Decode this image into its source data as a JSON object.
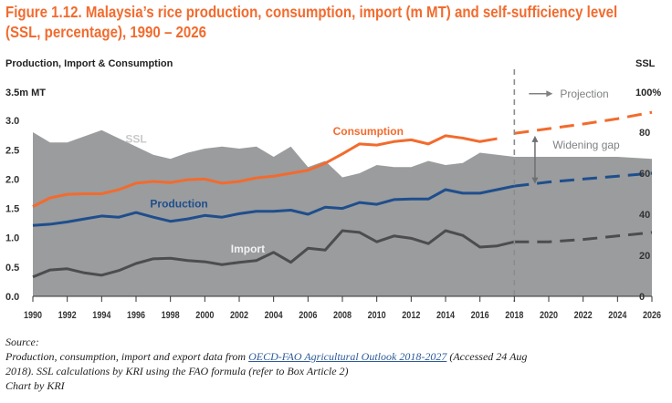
{
  "title": {
    "line1": "Figure 1.12. Malaysia’s rice production, consumption, import (m MT) and self-sufficiency level",
    "line2": "(SSL, percentage), 1990 – 2026"
  },
  "colors": {
    "consumption": "#f26b2e",
    "production": "#1f4e8c",
    "import": "#4d4d4f",
    "ssl_area": "#9a9c9e",
    "title": "#f26b2e",
    "annotation": "#7f8183"
  },
  "chart_data": {
    "type": "line",
    "title": "Malaysia’s rice production, consumption, import (m MT) and self-sufficiency level (SSL, percentage), 1990 – 2026",
    "left_axis_title": "Production, Import & Consumption",
    "left_axis_unit_label": "3.5m MT",
    "right_axis_title": "SSL",
    "right_axis_unit_label": "100%",
    "xlabel": "",
    "ylim_left": [
      0,
      3.5
    ],
    "ylim_right": [
      0,
      100
    ],
    "xlim": [
      1990,
      2026
    ],
    "left_ticks": [
      "0.0",
      "0.5",
      "1.0",
      "1.5",
      "2.0",
      "2.5",
      "3.0"
    ],
    "left_tick_values": [
      0,
      0.5,
      1.0,
      1.5,
      2.0,
      2.5,
      3.0
    ],
    "right_ticks": [
      "0",
      "20",
      "40",
      "60",
      "80"
    ],
    "right_tick_values": [
      0,
      20,
      40,
      60,
      80
    ],
    "x_ticks": [
      "1990",
      "1992",
      "1994",
      "1996",
      "1998",
      "2000",
      "2002",
      "2004",
      "2006",
      "2008",
      "2010",
      "2012",
      "2014",
      "2016",
      "2018",
      "2020",
      "2022",
      "2024",
      "2026"
    ],
    "projection_start": 2018,
    "grid": false,
    "series": [
      {
        "name": "Consumption",
        "axis": "left",
        "kind": "line",
        "x": [
          1990,
          1991,
          1992,
          1993,
          1994,
          1995,
          1996,
          1997,
          1998,
          1999,
          2000,
          2001,
          2002,
          2003,
          2004,
          2005,
          2006,
          2007,
          2008,
          2009,
          2010,
          2011,
          2012,
          2013,
          2014,
          2015,
          2016,
          2017
        ],
        "values": [
          1.53,
          1.68,
          1.74,
          1.75,
          1.75,
          1.82,
          1.93,
          1.96,
          1.94,
          1.99,
          2.0,
          1.93,
          1.96,
          2.02,
          2.05,
          2.1,
          2.15,
          2.27,
          2.43,
          2.6,
          2.58,
          2.64,
          2.67,
          2.6,
          2.74,
          2.7,
          2.64,
          2.69
        ],
        "projection_x": [
          2018,
          2020,
          2022,
          2024,
          2026
        ],
        "projection_values": [
          2.78,
          2.86,
          2.94,
          3.03,
          3.14
        ]
      },
      {
        "name": "Production",
        "axis": "left",
        "kind": "line",
        "x": [
          1990,
          1991,
          1992,
          1993,
          1994,
          1995,
          1996,
          1997,
          1998,
          1999,
          2000,
          2001,
          2002,
          2003,
          2004,
          2005,
          2006,
          2007,
          2008,
          2009,
          2010,
          2011,
          2012,
          2013,
          2014,
          2015,
          2016,
          2017,
          2018
        ],
        "values": [
          1.21,
          1.23,
          1.27,
          1.32,
          1.37,
          1.35,
          1.43,
          1.35,
          1.28,
          1.32,
          1.38,
          1.35,
          1.41,
          1.45,
          1.45,
          1.47,
          1.4,
          1.52,
          1.5,
          1.6,
          1.57,
          1.65,
          1.66,
          1.66,
          1.82,
          1.76,
          1.76,
          1.82,
          1.88
        ],
        "projection_x": [
          2018,
          2020,
          2022,
          2024,
          2026
        ],
        "projection_values": [
          1.88,
          1.95,
          2.0,
          2.05,
          2.1
        ]
      },
      {
        "name": "Import",
        "axis": "left",
        "kind": "line",
        "x": [
          1990,
          1991,
          1992,
          1993,
          1994,
          1995,
          1996,
          1997,
          1998,
          1999,
          2000,
          2001,
          2002,
          2003,
          2004,
          2005,
          2006,
          2007,
          2008,
          2009,
          2010,
          2011,
          2012,
          2013,
          2014,
          2015,
          2016,
          2017,
          2018
        ],
        "values": [
          0.33,
          0.45,
          0.47,
          0.4,
          0.36,
          0.44,
          0.56,
          0.64,
          0.65,
          0.61,
          0.59,
          0.54,
          0.58,
          0.61,
          0.75,
          0.58,
          0.82,
          0.79,
          1.12,
          1.09,
          0.93,
          1.03,
          0.99,
          0.9,
          1.12,
          1.04,
          0.84,
          0.86,
          0.93
        ],
        "projection_x": [
          2018,
          2020,
          2022,
          2024,
          2026
        ],
        "projection_values": [
          0.93,
          0.93,
          0.97,
          1.03,
          1.09
        ]
      },
      {
        "name": "SSL",
        "axis": "right",
        "kind": "area",
        "unit": "%",
        "x": [
          1990,
          1991,
          1992,
          1993,
          1994,
          1995,
          1996,
          1997,
          1998,
          1999,
          2000,
          2001,
          2002,
          2003,
          2004,
          2005,
          2006,
          2007,
          2008,
          2009,
          2010,
          2011,
          2012,
          2013,
          2014,
          2015,
          2016,
          2017,
          2018,
          2020,
          2022,
          2024,
          2026
        ],
        "values": [
          80,
          75,
          75,
          78,
          81,
          77,
          73,
          69,
          67,
          70,
          72,
          73,
          72,
          73,
          68,
          73,
          63,
          66,
          58,
          60,
          64,
          63,
          63,
          66,
          64,
          65,
          70,
          69,
          68,
          68,
          68,
          68,
          67
        ]
      }
    ],
    "annotations": [
      {
        "text": "SSL",
        "x": 1996,
        "y_pct": 75
      },
      {
        "text": "Consumption",
        "x": 2009.5,
        "y": 2.75
      },
      {
        "text": "Production",
        "x": 1998.5,
        "y": 1.52
      },
      {
        "text": "Import",
        "x": 2002.5,
        "y": 0.75
      },
      {
        "text": "Projection",
        "x": 2022.5,
        "y_pct": 97
      },
      {
        "text": "Widening gap",
        "x": 2022.5,
        "y_pct": 72
      }
    ]
  },
  "source": {
    "heading": "Source:",
    "line1_pre": "Production, consumption, import and export data from ",
    "link_text": "OECD-FAO Agricultural Outlook 2018-2027",
    "line1_post": " (Accessed 24 Aug",
    "line2": "2018). SSL calculations by KRI using the FAO formula (refer to Box Article 2)",
    "credit": "Chart by KRI"
  }
}
